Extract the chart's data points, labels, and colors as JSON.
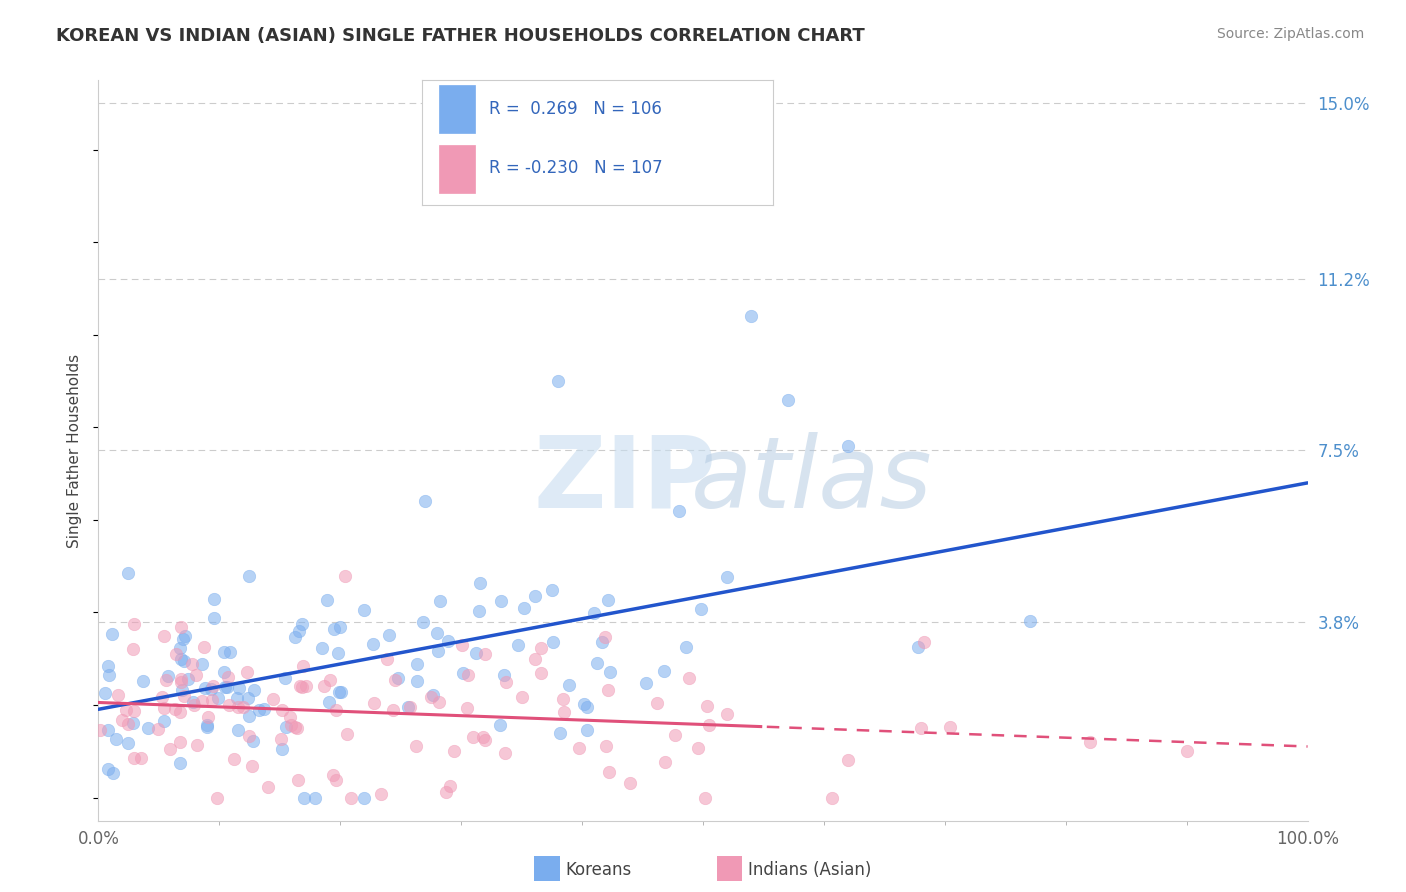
{
  "title": "KOREAN VS INDIAN (ASIAN) SINGLE FATHER HOUSEHOLDS CORRELATION CHART",
  "source": "Source: ZipAtlas.com",
  "ylabel": "Single Father Households",
  "xlim": [
    0.0,
    1.0
  ],
  "ylim": [
    -0.005,
    0.155
  ],
  "ytick_vals": [
    0.038,
    0.075,
    0.112,
    0.15
  ],
  "ytick_labels": [
    "3.8%",
    "7.5%",
    "11.2%",
    "15.0%"
  ],
  "xtick_vals": [
    0.0,
    1.0
  ],
  "xtick_labels": [
    "0.0%",
    "100.0%"
  ],
  "korean_R": 0.269,
  "korean_N": 106,
  "indian_R": -0.23,
  "indian_N": 107,
  "korean_color": "#7aadee",
  "indian_color": "#f099b5",
  "trend_korean_color": "#2255cc",
  "trend_indian_color": "#e0507a",
  "watermark_zip": "ZIP",
  "watermark_atlas": "atlas",
  "background_color": "#ffffff",
  "grid_color": "#cccccc",
  "title_color": "#333333",
  "axis_label_color": "#4d8fcc",
  "legend_label_color": "#3366bb",
  "scatter_alpha": 0.55,
  "scatter_size": 80,
  "title_fontsize": 13,
  "source_fontsize": 10,
  "tick_fontsize": 12,
  "ylabel_fontsize": 11,
  "legend_fontsize": 12
}
